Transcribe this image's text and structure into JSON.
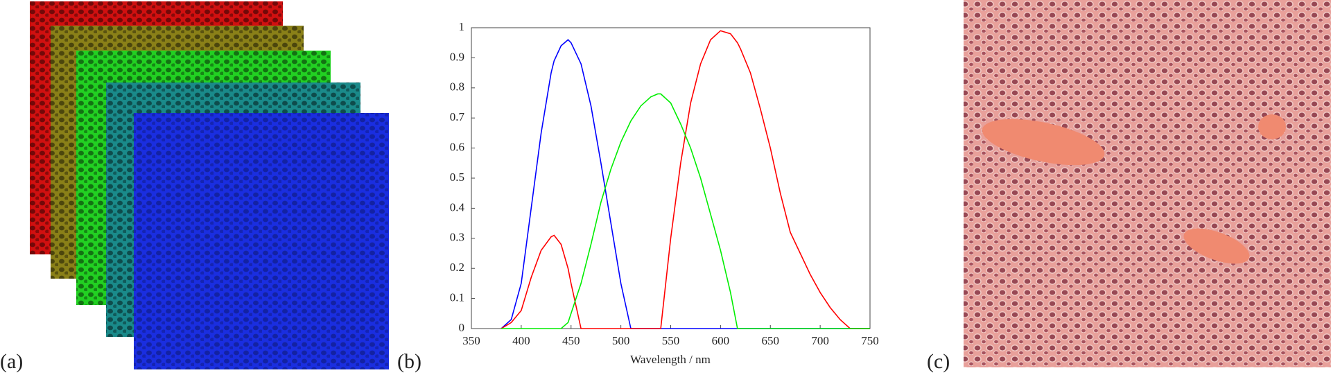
{
  "panel_labels": [
    "(a)",
    "(b)",
    "(c)"
  ],
  "chart_data": {
    "type": "line",
    "xlabel": "Wavelength / nm",
    "x": [
      380,
      390,
      400,
      410,
      420,
      430,
      433,
      440,
      447,
      450,
      460,
      470,
      480,
      490,
      500,
      510,
      520,
      530,
      537,
      540,
      550,
      560,
      570,
      580,
      590,
      600,
      610,
      617,
      620,
      630,
      640,
      650,
      660,
      670,
      680,
      690,
      700,
      710,
      720,
      730,
      740,
      750
    ],
    "series": [
      {
        "color": "#0000ff",
        "values": [
          0,
          0.03,
          0.15,
          0.4,
          0.65,
          0.85,
          0.89,
          0.94,
          0.96,
          0.95,
          0.88,
          0.74,
          0.55,
          0.35,
          0.15,
          0,
          0,
          0,
          0,
          0,
          0,
          0,
          0,
          0,
          0,
          0,
          0,
          0,
          0,
          0,
          0,
          0,
          0,
          0,
          0,
          0,
          0,
          0,
          0,
          0,
          0,
          0
        ]
      },
      {
        "color": "#ff0000",
        "values": [
          0,
          0.02,
          0.06,
          0.17,
          0.26,
          0.305,
          0.31,
          0.28,
          0.2,
          0.15,
          0,
          0,
          0,
          0,
          0,
          0,
          0,
          0,
          0,
          0,
          0.3,
          0.55,
          0.75,
          0.88,
          0.96,
          0.99,
          0.98,
          0.95,
          0.93,
          0.85,
          0.73,
          0.6,
          0.45,
          0.32,
          0.25,
          0.18,
          0.12,
          0.07,
          0.03,
          0,
          0,
          0
        ]
      },
      {
        "color": "#00ee00",
        "values": [
          0,
          0,
          0,
          0,
          0,
          0,
          0,
          0,
          0.02,
          0.05,
          0.15,
          0.28,
          0.42,
          0.53,
          0.62,
          0.69,
          0.74,
          0.77,
          0.78,
          0.78,
          0.75,
          0.68,
          0.6,
          0.5,
          0.38,
          0.26,
          0.12,
          0,
          0,
          0,
          0,
          0,
          0,
          0,
          0,
          0,
          0,
          0,
          0,
          0,
          0,
          0
        ]
      }
    ],
    "xlim": [
      350,
      750
    ],
    "ylim": [
      0,
      1
    ],
    "xticks": [
      350,
      400,
      450,
      500,
      550,
      600,
      650,
      700,
      750
    ],
    "yticks": [
      0,
      0.1,
      0.2,
      0.3,
      0.4,
      0.5,
      0.6,
      0.7,
      0.8,
      0.9,
      1
    ]
  }
}
